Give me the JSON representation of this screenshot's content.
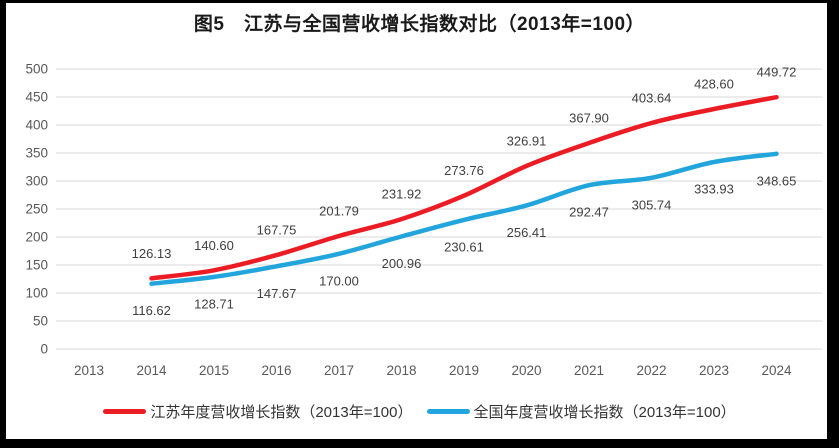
{
  "title": "图5　江苏与全国营收增长指数对比（2013年=100）",
  "colors": {
    "jiangsu_red": "#ec1c24",
    "national_blue": "#22a5dd",
    "gridline": "#d9d9d9",
    "axis_label": "#595959",
    "data_label": "#404040",
    "frame": "#000000",
    "panel_bg": "#ffffff"
  },
  "legend": {
    "items": [
      {
        "label": "江苏年度营收增长指数（2013年=100）",
        "color": "#ec1c24"
      },
      {
        "label": "全国年度营收增长指数（2013年=100）",
        "color": "#22a5dd"
      }
    ]
  },
  "chart_data": {
    "type": "line",
    "title": "图5　江苏与全国营收增长指数对比（2013年=100）",
    "categories": [
      "2013",
      "2014",
      "2015",
      "2016",
      "2017",
      "2018",
      "2019",
      "2020",
      "2021",
      "2022",
      "2023",
      "2024"
    ],
    "series": [
      {
        "name": "江苏年度营收增长指数（2013年=100）",
        "color": "#ec1c24",
        "values": [
          null,
          126.13,
          140.6,
          167.75,
          201.79,
          231.92,
          273.76,
          326.91,
          367.9,
          403.64,
          428.6,
          449.72
        ],
        "labels": [
          null,
          "126.13",
          "140.60",
          "167.75",
          "201.79",
          "231.92",
          "273.76",
          "326.91",
          "367.90",
          "403.64",
          "428.60",
          "449.72"
        ],
        "label_position": "above"
      },
      {
        "name": "全国年度营收增长指数（2013年=100）",
        "color": "#22a5dd",
        "values": [
          null,
          116.62,
          128.71,
          147.67,
          170.0,
          200.96,
          230.61,
          256.41,
          292.47,
          305.74,
          333.93,
          348.65
        ],
        "labels": [
          null,
          "116.62",
          "128.71",
          "147.67",
          "170.00",
          "200.96",
          "230.61",
          "256.41",
          "292.47",
          "305.74",
          "333.93",
          "348.65"
        ],
        "label_position": "below"
      }
    ],
    "xlabel": "",
    "ylabel": "",
    "ylim": [
      0,
      500
    ],
    "yticks": [
      0,
      50,
      100,
      150,
      200,
      250,
      300,
      350,
      400,
      450,
      500
    ],
    "grid": true,
    "legend_position": "bottom"
  }
}
